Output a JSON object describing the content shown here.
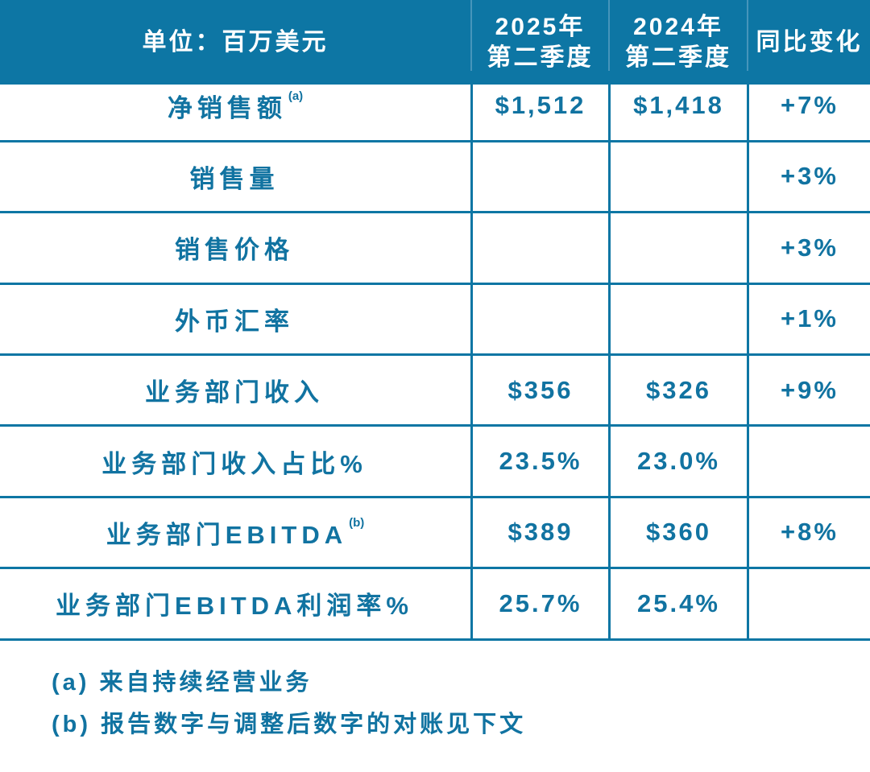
{
  "colors": {
    "header_bg": "#0d76a4",
    "grid_line": "#0d76a4",
    "text_accent": "#1173a1",
    "header_text": "#ffffff",
    "header_divider": "#4695bb"
  },
  "table": {
    "header": {
      "cells": [
        {
          "line1": "单位：百万美元"
        },
        {
          "line1": "2025年",
          "line2": "第二季度"
        },
        {
          "line1": "2024年",
          "line2": "第二季度"
        },
        {
          "line1": "同比变化"
        }
      ]
    },
    "rows": [
      {
        "label": "净销售额",
        "sup": "(a)",
        "v2025": "$1,512",
        "v2024": "$1,418",
        "yoy": "+7%"
      },
      {
        "label": "销售量",
        "v2025": "",
        "v2024": "",
        "yoy": "+3%"
      },
      {
        "label": "销售价格",
        "v2025": "",
        "v2024": "",
        "yoy": "+3%"
      },
      {
        "label": "外币汇率",
        "v2025": "",
        "v2024": "",
        "yoy": "+1%"
      },
      {
        "label": "业务部门收入",
        "v2025": "$356",
        "v2024": "$326",
        "yoy": "+9%"
      },
      {
        "label": "业务部门收入占比%",
        "v2025": "23.5%",
        "v2024": "23.0%",
        "yoy": ""
      },
      {
        "label": "业务部门EBITDA",
        "sup": "(b)",
        "v2025": "$389",
        "v2024": "$360",
        "yoy": "+8%"
      },
      {
        "label": "业务部门EBITDA利润率%",
        "v2025": "25.7%",
        "v2024": "25.4%",
        "yoy": ""
      }
    ]
  },
  "footnotes": [
    "(a) 来自持续经营业务",
    "(b) 报告数字与调整后数字的对账见下文"
  ],
  "chart_data": {
    "type": "table",
    "title": "单位：百万美元",
    "columns": [
      "单位：百万美元",
      "2025年第二季度",
      "2024年第二季度",
      "同比变化"
    ],
    "rows": [
      [
        "净销售额 (a)",
        "$1,512",
        "$1,418",
        "+7%"
      ],
      [
        "销售量",
        "",
        "",
        "+3%"
      ],
      [
        "销售价格",
        "",
        "",
        "+3%"
      ],
      [
        "外币汇率",
        "",
        "",
        "+1%"
      ],
      [
        "业务部门收入",
        "$356",
        "$326",
        "+9%"
      ],
      [
        "业务部门收入占比%",
        "23.5%",
        "23.0%",
        ""
      ],
      [
        "业务部门EBITDA (b)",
        "$389",
        "$360",
        "+8%"
      ],
      [
        "业务部门EBITDA利润率%",
        "25.7%",
        "25.4%",
        ""
      ]
    ],
    "notes": [
      "(a) 来自持续经营业务",
      "(b) 报告数字与调整后数字的对账见下文"
    ]
  }
}
